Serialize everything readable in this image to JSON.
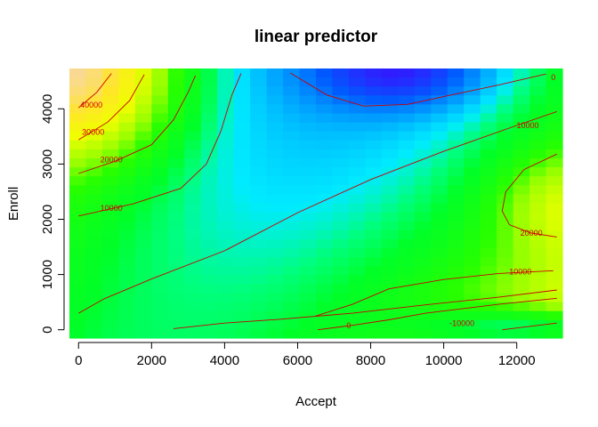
{
  "chart_data": {
    "type": "heatmap",
    "title": "linear predictor",
    "xlabel": "Accept",
    "ylabel": "Enroll",
    "xlim": [
      -250,
      13250
    ],
    "ylim": [
      -150,
      4730
    ],
    "xticks": [
      0,
      2000,
      4000,
      6000,
      8000,
      10000,
      12000
    ],
    "yticks": [
      0,
      1000,
      2000,
      3000,
      4000
    ],
    "contours": [
      {
        "level": "-10000",
        "points": [
          [
            11600,
            0
          ],
          [
            13100,
            120
          ]
        ]
      },
      {
        "level": "0",
        "points": [
          [
            2600,
            20
          ],
          [
            4000,
            120
          ],
          [
            5500,
            190
          ],
          [
            7500,
            300
          ],
          [
            9500,
            450
          ],
          [
            11500,
            590
          ],
          [
            13100,
            720
          ]
        ]
      },
      {
        "level": "10000",
        "points": [
          [
            0,
            300
          ],
          [
            700,
            560
          ],
          [
            2000,
            920
          ],
          [
            4000,
            1430
          ],
          [
            6000,
            2120
          ],
          [
            8000,
            2720
          ],
          [
            10000,
            3230
          ],
          [
            12000,
            3700
          ],
          [
            13100,
            3950
          ]
        ]
      },
      {
        "level": "-10000",
        "points": [
          [
            6550,
            0
          ],
          [
            7500,
            80
          ],
          [
            8500,
            180
          ],
          [
            9500,
            300
          ],
          [
            10500,
            380
          ],
          [
            11500,
            460
          ],
          [
            13100,
            570
          ]
        ]
      },
      {
        "level": "10000",
        "points": [
          [
            6500,
            250
          ],
          [
            7500,
            460
          ],
          [
            8500,
            740
          ],
          [
            10000,
            910
          ],
          [
            11500,
            1020
          ],
          [
            13000,
            1070
          ]
        ]
      },
      {
        "level": "10000",
        "points": [
          [
            0,
            2060
          ],
          [
            1500,
            2280
          ],
          [
            2800,
            2560
          ],
          [
            3500,
            3000
          ],
          [
            3900,
            3600
          ],
          [
            4200,
            4250
          ],
          [
            4450,
            4640
          ]
        ]
      },
      {
        "level": "20000",
        "points": [
          [
            0,
            2830
          ],
          [
            1000,
            3050
          ],
          [
            2000,
            3350
          ],
          [
            2600,
            3800
          ],
          [
            3000,
            4300
          ],
          [
            3200,
            4600
          ]
        ]
      },
      {
        "level": "30000",
        "points": [
          [
            0,
            3440
          ],
          [
            800,
            3760
          ],
          [
            1400,
            4150
          ],
          [
            1800,
            4620
          ]
        ]
      },
      {
        "level": "40000",
        "points": [
          [
            0,
            4020
          ],
          [
            500,
            4300
          ],
          [
            900,
            4640
          ]
        ]
      },
      {
        "level": "0",
        "points": [
          [
            5800,
            4650
          ],
          [
            6800,
            4250
          ],
          [
            7800,
            4050
          ],
          [
            9000,
            4080
          ],
          [
            10200,
            4250
          ],
          [
            11500,
            4430
          ],
          [
            12800,
            4630
          ]
        ]
      },
      {
        "level": "20000",
        "points": [
          [
            13100,
            3180
          ],
          [
            12200,
            2900
          ],
          [
            11700,
            2500
          ],
          [
            11600,
            2150
          ],
          [
            11800,
            1900
          ],
          [
            12400,
            1750
          ],
          [
            13100,
            1680
          ]
        ]
      }
    ],
    "contour_labels": [
      {
        "text": "40000",
        "x": 350,
        "y": 4020
      },
      {
        "text": "30000",
        "x": 400,
        "y": 3530
      },
      {
        "text": "20000",
        "x": 900,
        "y": 3030
      },
      {
        "text": "10000",
        "x": 900,
        "y": 2150
      },
      {
        "text": "10000",
        "x": 12300,
        "y": 3650
      },
      {
        "text": "20000",
        "x": 12400,
        "y": 1700
      },
      {
        "text": "10000",
        "x": 12100,
        "y": 1000
      },
      {
        "text": "0",
        "x": 13000,
        "y": 4520
      },
      {
        "text": "0",
        "x": 7400,
        "y": 30
      },
      {
        "text": "-10000",
        "x": 10500,
        "y": 70
      }
    ]
  }
}
